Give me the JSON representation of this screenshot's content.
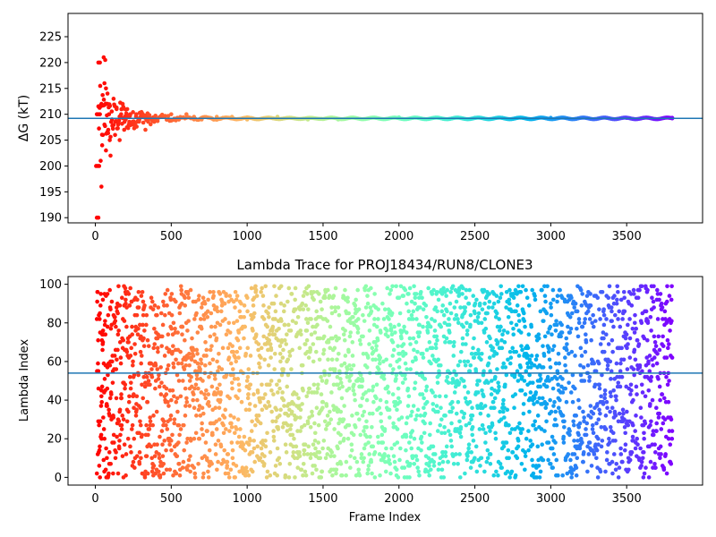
{
  "chart_data": [
    {
      "type": "scatter",
      "title": "",
      "xlabel": "",
      "ylabel": "ΔG (kT)",
      "xlim": [
        -180,
        4000
      ],
      "ylim": [
        189,
        229.5
      ],
      "xticks": [
        0,
        500,
        1000,
        1500,
        2000,
        2500,
        3000,
        3500
      ],
      "yticks": [
        190,
        195,
        200,
        205,
        210,
        215,
        220,
        225
      ],
      "hline": 209.2,
      "colormap": "rainbow",
      "color_reversed": true,
      "n_frames": 3800,
      "series": [
        {
          "values": [
            [
              10,
              190
            ],
            [
              20,
              190
            ],
            [
              5,
              200
            ],
            [
              15,
              200
            ],
            [
              25,
              200
            ],
            [
              35,
              201
            ],
            [
              40,
              196
            ],
            [
              10,
              210
            ],
            [
              20,
              210
            ],
            [
              30,
              210
            ],
            [
              20,
              220
            ],
            [
              30,
              220
            ],
            [
              55,
              221
            ],
            [
              65,
              220.5
            ],
            [
              40,
              212
            ],
            [
              50,
              206
            ],
            [
              45,
              204
            ],
            [
              60,
              208
            ],
            [
              70,
              203
            ],
            [
              80,
              212
            ],
            [
              90,
              210
            ],
            [
              60,
              216
            ],
            [
              70,
              215
            ],
            [
              80,
              214
            ],
            [
              85,
              207
            ],
            [
              95,
              205
            ],
            [
              100,
              202
            ],
            [
              110,
              209
            ],
            [
              120,
              213
            ],
            [
              130,
              206
            ],
            [
              140,
              211
            ],
            [
              150,
              208
            ],
            [
              160,
              205
            ],
            [
              170,
              210
            ],
            [
              180,
              212
            ],
            [
              190,
              207
            ],
            [
              200,
              209
            ],
            [
              210,
              211
            ],
            [
              220,
              208
            ],
            [
              230,
              210
            ],
            [
              250,
              208
            ],
            [
              270,
              210
            ],
            [
              290,
              209
            ],
            [
              310,
              210
            ],
            [
              330,
              207
            ],
            [
              350,
              209
            ],
            [
              400,
              209
            ],
            [
              450,
              209.5
            ],
            [
              500,
              210
            ],
            [
              550,
              209
            ],
            [
              600,
              210
            ],
            [
              650,
              209.5
            ],
            [
              700,
              209
            ],
            [
              800,
              209.5
            ],
            [
              900,
              209.5
            ],
            [
              1000,
              209
            ],
            [
              1200,
              209.5
            ],
            [
              1400,
              209
            ],
            [
              1600,
              209
            ],
            [
              1800,
              209.2
            ],
            [
              2000,
              209.4
            ],
            [
              2500,
              209.3
            ],
            [
              3000,
              209.3
            ],
            [
              3500,
              209.3
            ],
            [
              3800,
              209.3
            ]
          ]
        }
      ]
    },
    {
      "type": "scatter",
      "title": "Lambda Trace for PROJ18434/RUN8/CLONE3",
      "xlabel": "Frame Index",
      "ylabel": "Lambda Index",
      "xlim": [
        -180,
        4000
      ],
      "ylim": [
        -4,
        104
      ],
      "xticks": [
        0,
        500,
        1000,
        1500,
        2000,
        2500,
        3000,
        3500
      ],
      "yticks": [
        0,
        20,
        40,
        60,
        80,
        100
      ],
      "hline": 54,
      "colormap": "rainbow",
      "color_reversed": true,
      "n_frames": 3800,
      "lambda_range": [
        0,
        99
      ],
      "series": [
        {
          "values": [
            [
              10,
              2
            ],
            [
              20,
              55
            ],
            [
              30,
              85
            ],
            [
              40,
              45
            ],
            [
              50,
              70
            ],
            [
              60,
              20
            ],
            [
              80,
              95
            ],
            [
              100,
              60
            ],
            [
              150,
              30
            ],
            [
              200,
              90
            ],
            [
              300,
              10
            ],
            [
              400,
              75
            ],
            [
              500,
              40
            ],
            [
              600,
              5
            ],
            [
              700,
              88
            ],
            [
              800,
              25
            ],
            [
              900,
              65
            ],
            [
              1000,
              50
            ],
            [
              1200,
              15
            ],
            [
              1400,
              80
            ],
            [
              1600,
              35
            ],
            [
              1800,
              97
            ],
            [
              2000,
              30
            ],
            [
              2200,
              60
            ],
            [
              2400,
              12
            ],
            [
              2600,
              72
            ],
            [
              2800,
              45
            ],
            [
              3000,
              90
            ],
            [
              3200,
              20
            ],
            [
              3400,
              55
            ],
            [
              3600,
              8
            ],
            [
              3800,
              62
            ]
          ]
        }
      ]
    }
  ]
}
